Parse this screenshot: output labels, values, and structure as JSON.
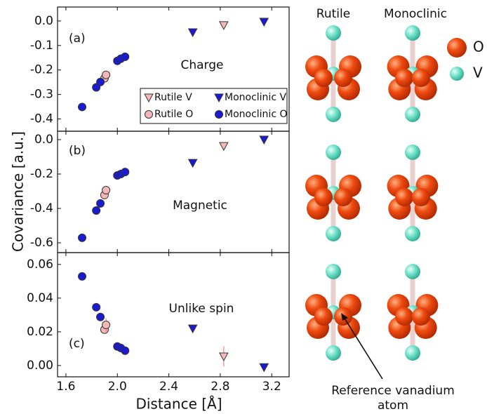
{
  "chart_data": [
    {
      "type": "scatter",
      "panel_label": "(a)",
      "annotation": "Charge",
      "xlim": [
        1.535,
        3.335
      ],
      "ylim": [
        -0.45,
        0.057
      ],
      "yticks": [
        {
          "value": 0,
          "label": "0.0"
        },
        -0.1,
        -0.2,
        -0.3,
        -0.4
      ],
      "legend": "lower right",
      "series": [
        {
          "name": "Rutile V",
          "color": "#f4b8b8",
          "marker": "triangle-down",
          "x": [
            2.827
          ],
          "values": [
            -0.017
          ]
        },
        {
          "name": "Rutile O",
          "color": "#f4b8b8",
          "marker": "circle",
          "x": [
            1.9,
            1.912
          ],
          "values": [
            -0.234,
            -0.22
          ]
        },
        {
          "name": "Monoclinic V",
          "color": "#1a1ad0",
          "marker": "triangle-down",
          "x": [
            2.586,
            3.14
          ],
          "values": [
            -0.046,
            -0.003
          ]
        },
        {
          "name": "Monoclinic O",
          "color": "#1a1ad0",
          "marker": "circle",
          "x": [
            1.726,
            1.836,
            1.868,
            2.0,
            2.027,
            2.06
          ],
          "values": [
            -0.351,
            -0.271,
            -0.249,
            -0.163,
            -0.154,
            -0.146
          ]
        }
      ]
    },
    {
      "type": "scatter",
      "panel_label": "(b)",
      "annotation": "Magnetic",
      "y_label": "Covariance [a.u.]",
      "xlim": [
        1.535,
        3.335
      ],
      "ylim": [
        -0.657,
        0.049
      ],
      "yticks": [
        {
          "value": 0,
          "label": "0.0"
        },
        -0.2,
        -0.4,
        -0.6
      ],
      "series": [
        {
          "color": "#f4b8b8",
          "marker": "triangle-down",
          "x": [
            2.827
          ],
          "values": [
            -0.037
          ],
          "errors": [
            0.02
          ]
        },
        {
          "color": "#f4b8b8",
          "marker": "circle",
          "x": [
            1.9,
            1.912
          ],
          "values": [
            -0.322,
            -0.294
          ]
        },
        {
          "color": "#1a1ad0",
          "marker": "triangle-down",
          "x": [
            2.586,
            3.14
          ],
          "values": [
            -0.135,
            0
          ]
        },
        {
          "color": "#1a1ad0",
          "marker": "circle",
          "x": [
            1.726,
            1.836,
            1.868,
            2.0,
            2.027,
            2.06
          ],
          "values": [
            -0.571,
            -0.412,
            -0.371,
            -0.208,
            -0.2,
            -0.188
          ]
        }
      ]
    },
    {
      "type": "scatter",
      "panel_label": "(c)",
      "annotation": "Unlike spin",
      "x_label": "Distance [Å]",
      "xlim": [
        1.535,
        3.335
      ],
      "xticks": [
        1.6,
        {
          "value": 2,
          "label": "2.0"
        },
        2.4,
        2.8,
        3.2
      ],
      "ylim": [
        -0.0067,
        0.067
      ],
      "yticks": [
        0.06,
        0.04,
        0.02,
        {
          "value": 0,
          "label": "0.00"
        }
      ],
      "series": [
        {
          "color": "#f4b8b8",
          "marker": "triangle-down",
          "x": [
            2.827
          ],
          "values": [
            0.0054
          ],
          "errors": [
            0.006
          ]
        },
        {
          "color": "#f4b8b8",
          "marker": "circle",
          "x": [
            1.9,
            1.912
          ],
          "values": [
            0.0213,
            0.0241
          ],
          "errors": [
            null,
            0.004
          ]
        },
        {
          "color": "#1a1ad0",
          "marker": "triangle-down",
          "x": [
            2.586,
            3.14
          ],
          "values": [
            0.022,
            -0.001
          ]
        },
        {
          "color": "#1a1ad0",
          "marker": "circle",
          "x": [
            1.726,
            1.836,
            1.868,
            2.0,
            2.027,
            2.06
          ],
          "values": [
            0.0529,
            0.0346,
            0.0288,
            0.0113,
            0.0104,
            0.0088
          ]
        }
      ]
    }
  ],
  "illustration": {
    "column_labels": [
      "Rutile",
      "Monoclinic"
    ],
    "legend": [
      "O",
      "V"
    ],
    "pointer_label": [
      "Reference vanadium",
      "atom"
    ]
  }
}
